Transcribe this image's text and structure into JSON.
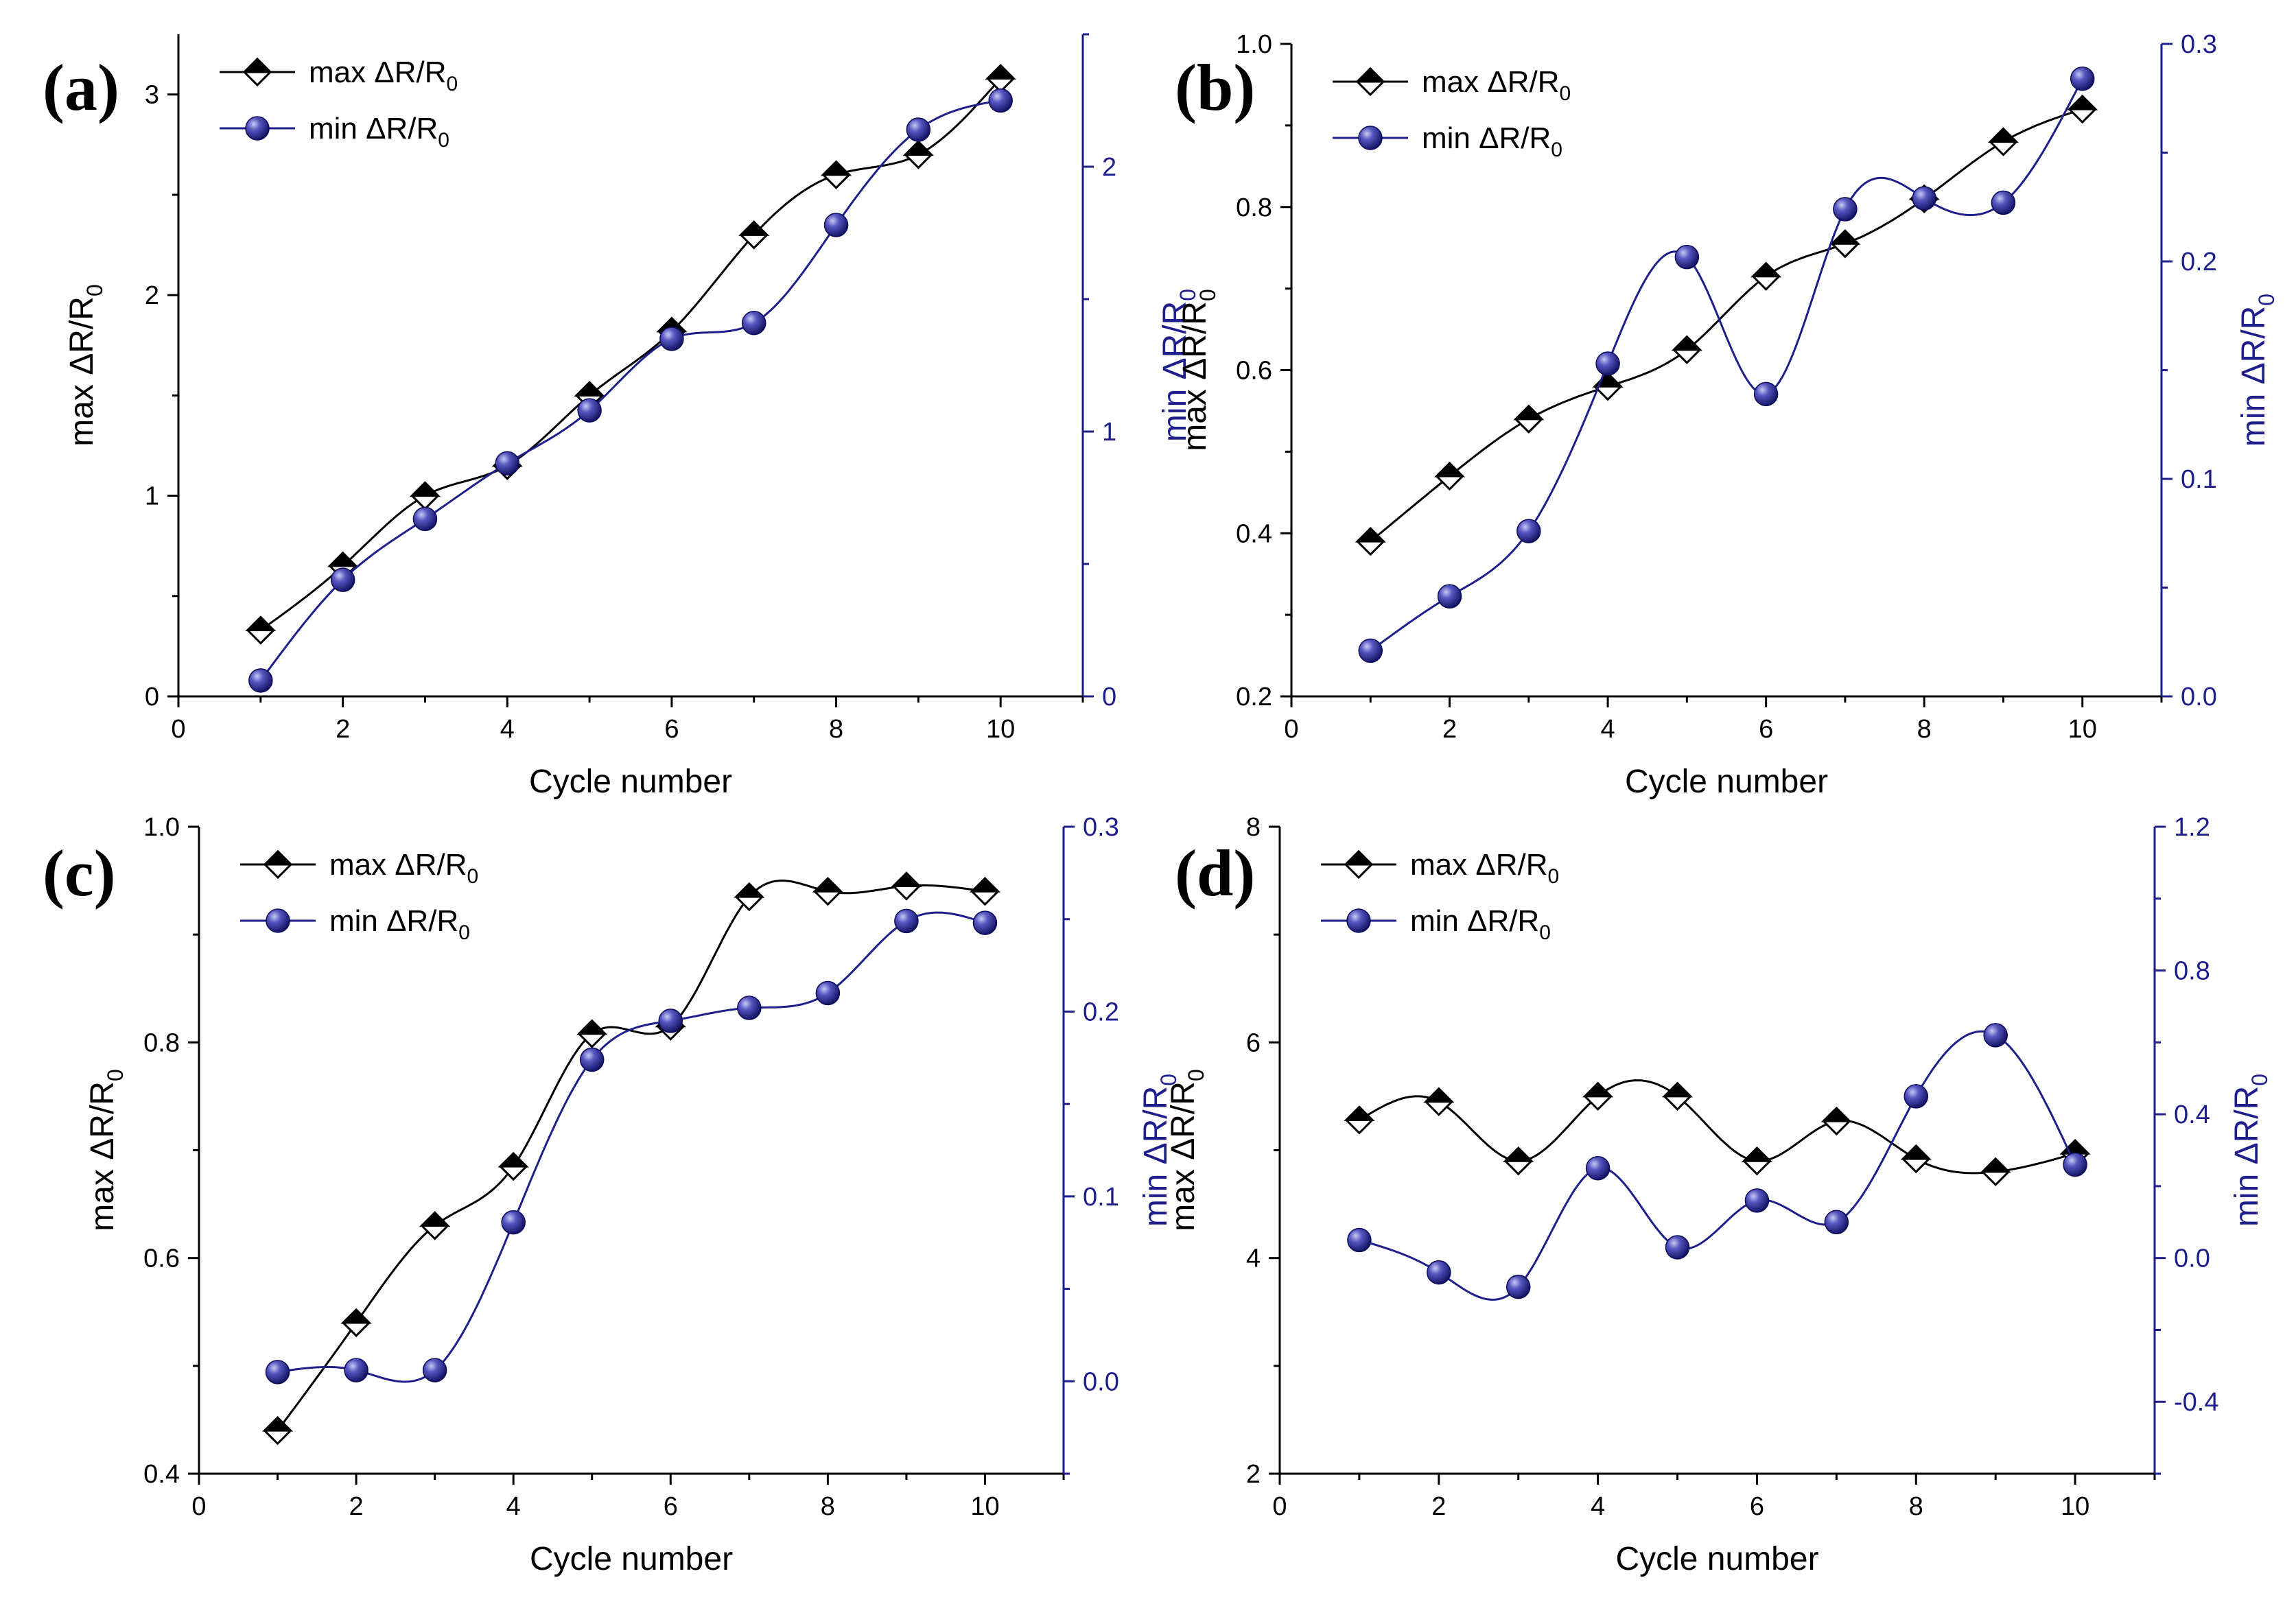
{
  "figure": {
    "colors": {
      "max_series": "#000000",
      "min_series": "#1f1f8c",
      "right_axis": "#1f1f8c",
      "marker_fill_dark": "#000000",
      "ball_light": "#8a8ad8",
      "ball_dark": "#0b0b5a"
    },
    "symbols": {
      "delta": "Δ",
      "sub_zero": "0"
    }
  },
  "chart_data": [
    {
      "panel_label": "(a)",
      "type": "line",
      "x": [
        1,
        2,
        3,
        4,
        5,
        6,
        7,
        8,
        9,
        10
      ],
      "xlabel": "Cycle number",
      "xlim": [
        0,
        11
      ],
      "xticks": [
        0,
        2,
        4,
        6,
        8,
        10
      ],
      "ylabel_left": "max ΔR/R0",
      "ylim_left": [
        0,
        3.3
      ],
      "yticks_left": [
        0,
        1,
        2,
        3
      ],
      "ylabel_right": "min ΔR/R0",
      "ylim_right": [
        0,
        2.5
      ],
      "yticks_right": [
        0,
        1,
        2
      ],
      "legend": {
        "position": "top-left",
        "entries": [
          "max ΔR/R0",
          "min ΔR/R0"
        ]
      },
      "series": [
        {
          "name": "max ΔR/R0",
          "axis": "left",
          "values": [
            0.33,
            0.65,
            1.0,
            1.15,
            1.5,
            1.82,
            2.3,
            2.6,
            2.7,
            3.08
          ]
        },
        {
          "name": "min ΔR/R0",
          "axis": "right",
          "values": [
            0.06,
            0.44,
            0.67,
            0.88,
            1.08,
            1.35,
            1.41,
            1.78,
            2.14,
            2.25
          ]
        }
      ]
    },
    {
      "panel_label": "(b)",
      "type": "line",
      "x": [
        1,
        2,
        3,
        4,
        5,
        6,
        7,
        8,
        9,
        10
      ],
      "xlabel": "Cycle number",
      "xlim": [
        0,
        11
      ],
      "xticks": [
        0,
        2,
        4,
        6,
        8,
        10
      ],
      "ylabel_left": "max ΔR/R0",
      "ylim_left": [
        0.2,
        1.0
      ],
      "yticks_left": [
        0.2,
        0.4,
        0.6,
        0.8,
        1.0
      ],
      "ylabel_right": "min ΔR/R0",
      "ylim_right": [
        0.0,
        0.3
      ],
      "yticks_right": [
        0.0,
        0.1,
        0.2,
        0.3
      ],
      "legend": {
        "position": "top-left",
        "entries": [
          "max ΔR/R0",
          "min ΔR/R0"
        ]
      },
      "series": [
        {
          "name": "max ΔR/R0",
          "axis": "left",
          "values": [
            0.39,
            0.47,
            0.54,
            0.58,
            0.625,
            0.715,
            0.755,
            0.81,
            0.88,
            0.92
          ]
        },
        {
          "name": "min ΔR/R0",
          "axis": "right",
          "values": [
            0.021,
            0.046,
            0.076,
            0.153,
            0.202,
            0.139,
            0.224,
            0.229,
            0.227,
            0.284
          ]
        }
      ]
    },
    {
      "panel_label": "(c)",
      "type": "line",
      "x": [
        1,
        2,
        3,
        4,
        5,
        6,
        7,
        8,
        9,
        10
      ],
      "xlabel": "Cycle number",
      "xlim": [
        0,
        11
      ],
      "xticks": [
        0,
        2,
        4,
        6,
        8,
        10
      ],
      "ylabel_left": "max ΔR/R0",
      "ylim_left": [
        0.4,
        1.0
      ],
      "yticks_left": [
        0.4,
        0.6,
        0.8,
        1.0
      ],
      "ylabel_right": "min ΔR/R0",
      "ylim_right": [
        -0.05,
        0.3
      ],
      "yticks_right": [
        0.0,
        0.1,
        0.2,
        0.3
      ],
      "legend": {
        "position": "top-left",
        "entries": [
          "max ΔR/R0",
          "min ΔR/R0"
        ]
      },
      "series": [
        {
          "name": "max ΔR/R0",
          "axis": "left",
          "values": [
            0.44,
            0.54,
            0.63,
            0.685,
            0.808,
            0.815,
            0.935,
            0.94,
            0.945,
            0.94
          ]
        },
        {
          "name": "min ΔR/R0",
          "axis": "right",
          "values": [
            0.005,
            0.006,
            0.006,
            0.086,
            0.174,
            0.195,
            0.202,
            0.21,
            0.249,
            0.248
          ]
        }
      ]
    },
    {
      "panel_label": "(d)",
      "type": "line",
      "x": [
        1,
        2,
        3,
        4,
        5,
        6,
        7,
        8,
        9,
        10
      ],
      "xlabel": "Cycle number",
      "xlim": [
        0,
        11
      ],
      "xticks": [
        0,
        2,
        4,
        6,
        8,
        10
      ],
      "ylabel_left": "max ΔR/R0",
      "ylim_left": [
        2,
        8
      ],
      "yticks_left": [
        2,
        4,
        6,
        8
      ],
      "ylabel_right": "min ΔR/R0",
      "ylim_right": [
        -0.6,
        1.2
      ],
      "yticks_right": [
        -0.4,
        0.0,
        0.4,
        0.8,
        1.2
      ],
      "legend": {
        "position": "top-left",
        "entries": [
          "max ΔR/R0",
          "min ΔR/R0"
        ]
      },
      "series": [
        {
          "name": "max ΔR/R0",
          "axis": "left",
          "values": [
            5.28,
            5.45,
            4.9,
            5.5,
            5.5,
            4.9,
            5.27,
            4.92,
            4.8,
            4.97
          ]
        },
        {
          "name": "min ΔR/R0",
          "axis": "right",
          "values": [
            0.05,
            -0.04,
            -0.08,
            0.25,
            0.03,
            0.16,
            0.1,
            0.45,
            0.62,
            0.26
          ]
        }
      ]
    }
  ]
}
